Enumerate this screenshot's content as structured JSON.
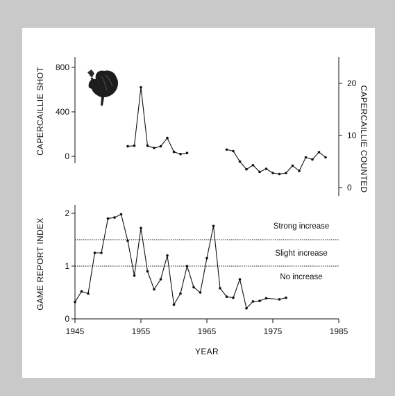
{
  "chart_data": [
    {
      "type": "line",
      "panel": "top",
      "xlabel": "",
      "ylabel_left": "CAPERCAILLIE SHOT",
      "ylabel_right": "CAPERCAILLIE COUNTED",
      "yticks_left": [
        0,
        400,
        800
      ],
      "yticks_right": [
        0,
        10,
        20
      ],
      "series": [
        {
          "axis": "left",
          "x": [
            1953,
            1954,
            1955,
            1956,
            1957,
            1958,
            1959,
            1960,
            1961,
            1962
          ],
          "values": [
            90,
            95,
            620,
            95,
            75,
            90,
            165,
            40,
            20,
            30
          ]
        },
        {
          "axis": "right",
          "x": [
            1968,
            1969,
            1970,
            1971,
            1972,
            1973,
            1974,
            1975,
            1976,
            1977,
            1978,
            1979,
            1980,
            1981,
            1982,
            1983
          ],
          "values": [
            7.3,
            7,
            5,
            3.5,
            4.3,
            3,
            3.6,
            2.8,
            2.6,
            2.8,
            4.2,
            3.2,
            5.8,
            5.4,
            6.8,
            5.8
          ]
        }
      ]
    },
    {
      "type": "line",
      "panel": "bottom",
      "xlabel": "YEAR",
      "ylabel": "GAME REPORT INDEX",
      "xticks": [
        1945,
        1955,
        1965,
        1975,
        1985
      ],
      "yticks": [
        0,
        1,
        2
      ],
      "reference_lines": [
        {
          "y": 1.5,
          "label": "Strong increase"
        },
        {
          "y": 1.0,
          "label": "Slight increase"
        }
      ],
      "annotations": [
        "Strong increase",
        "Slight increase",
        "No increase"
      ],
      "series": [
        {
          "x": [
            1945,
            1946,
            1947,
            1948,
            1949,
            1950,
            1951,
            1952,
            1953,
            1954,
            1955,
            1956,
            1957,
            1958,
            1959,
            1960,
            1961,
            1962,
            1963,
            1964,
            1965,
            1966,
            1967,
            1968,
            1969,
            1970,
            1971,
            1972,
            1973,
            1974,
            1976,
            1977
          ],
          "values": [
            0.32,
            0.52,
            0.48,
            1.25,
            1.25,
            1.9,
            1.92,
            1.98,
            1.48,
            0.82,
            1.72,
            0.9,
            0.56,
            0.75,
            1.2,
            0.27,
            0.48,
            1.0,
            0.6,
            0.5,
            1.15,
            1.76,
            0.58,
            0.42,
            0.4,
            0.75,
            0.2,
            0.33,
            0.34,
            0.39,
            0.37,
            0.4
          ]
        }
      ]
    }
  ],
  "icons": {
    "bird": "capercaillie-icon"
  }
}
